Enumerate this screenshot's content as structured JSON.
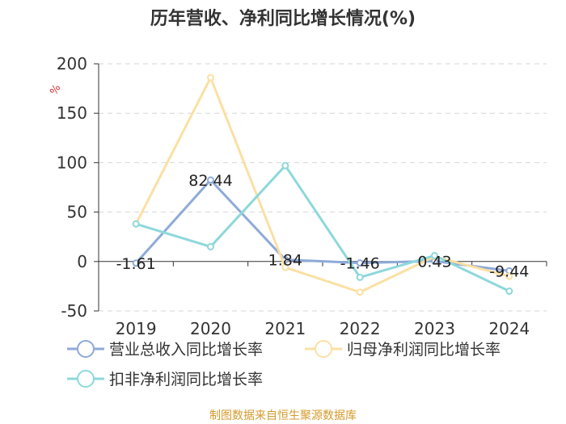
{
  "chart_data": {
    "type": "line",
    "title": "历年营收、净利同比增长情况(%)",
    "ylabel": "%",
    "categories": [
      "2019",
      "2020",
      "2021",
      "2022",
      "2023",
      "2024"
    ],
    "ylim": [
      -50,
      200
    ],
    "yticks": [
      -50,
      0,
      50,
      100,
      150,
      200
    ],
    "grid": true,
    "legend_position": "bottom",
    "series": [
      {
        "name": "营业总收入同比增长率",
        "color": "#8eaad8",
        "values": [
          -1.61,
          82.44,
          1.84,
          -1.46,
          0.43,
          -9.44
        ],
        "labels": [
          "-1.61",
          "82.44",
          "1.84",
          "-1.46",
          "0.43",
          "-9.44"
        ]
      },
      {
        "name": "归母净利润同比增长率",
        "color": "#fbe0a3",
        "values": [
          38,
          186,
          -6,
          -31,
          5,
          -15
        ]
      },
      {
        "name": "扣非净利润同比增长率",
        "color": "#8dd8db",
        "values": [
          38,
          15,
          97,
          -16,
          6,
          -30
        ]
      }
    ]
  },
  "source": "制图数据来自恒生聚源数据库"
}
